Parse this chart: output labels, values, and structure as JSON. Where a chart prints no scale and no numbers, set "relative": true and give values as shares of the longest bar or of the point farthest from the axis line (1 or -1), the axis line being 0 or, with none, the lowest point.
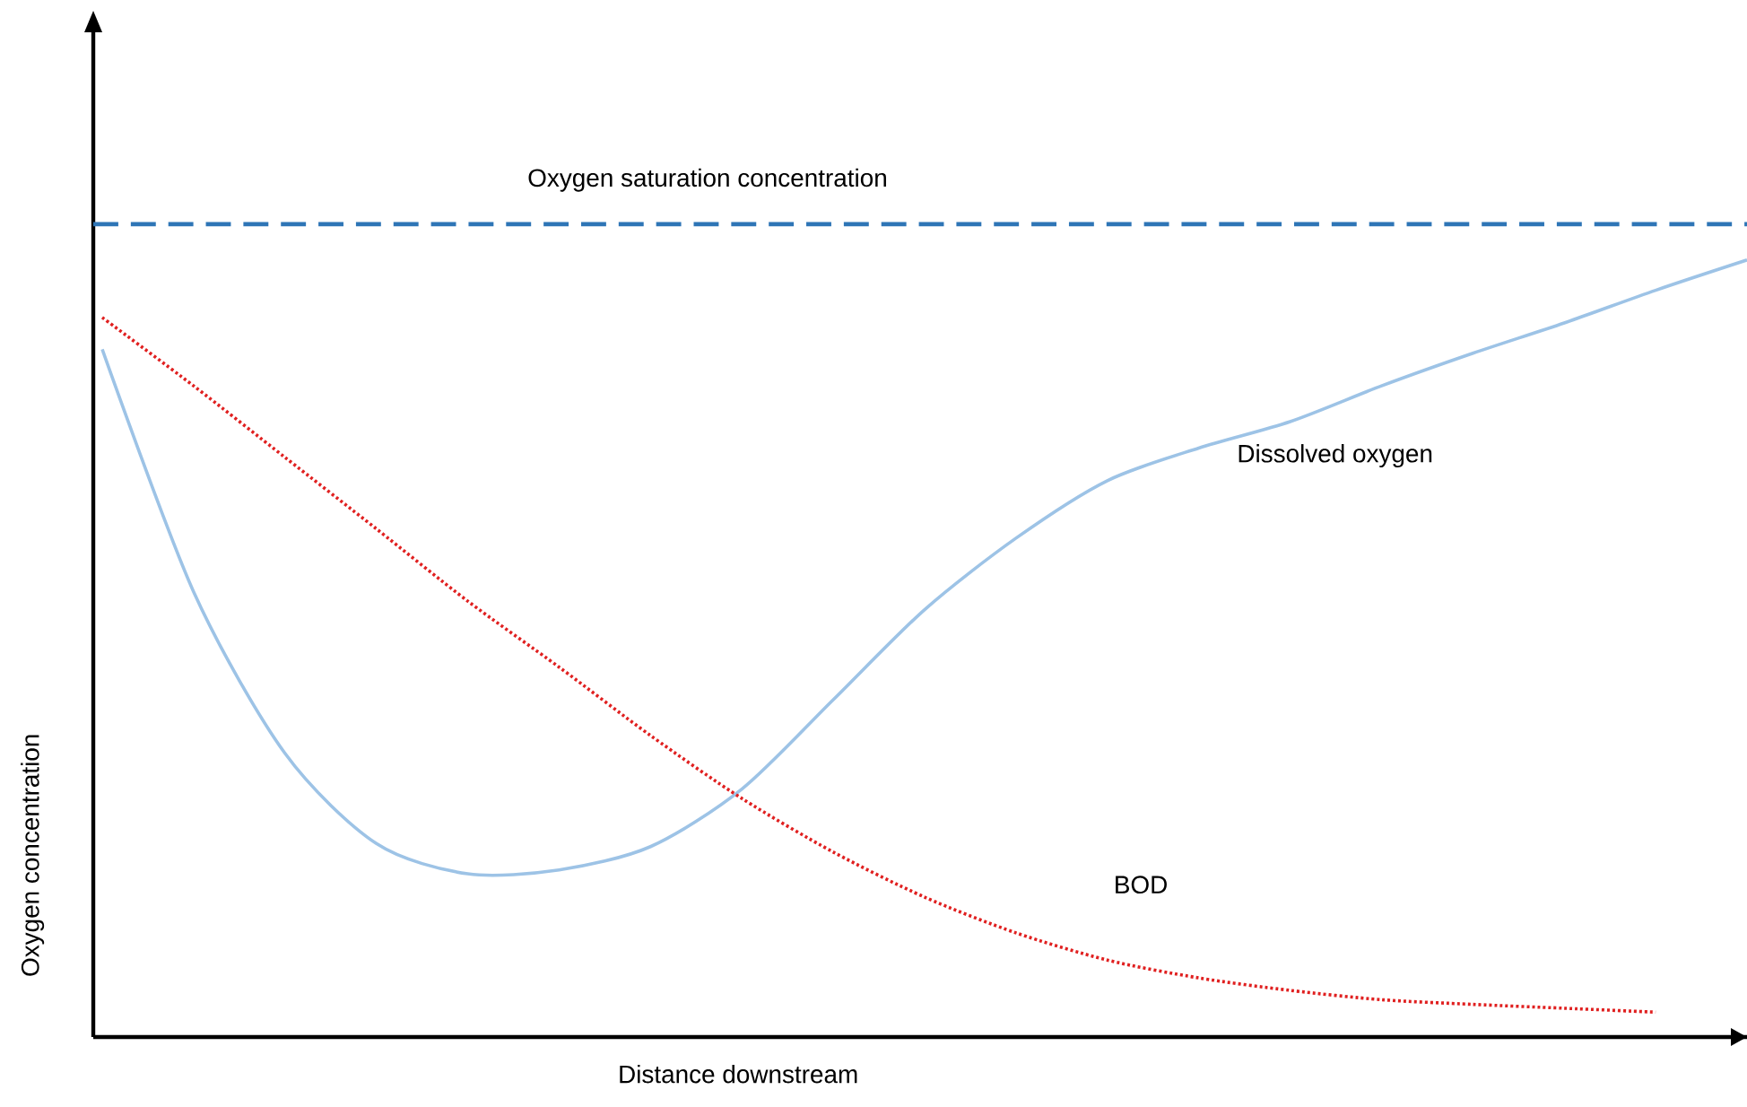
{
  "chart_data": {
    "type": "line",
    "relative": true,
    "xlabel": "Distance downstream",
    "ylabel": "Oxygen concentration",
    "marker": "none",
    "categories": [
      null,
      null,
      null,
      null,
      null,
      null,
      null,
      null,
      null,
      null,
      null,
      null,
      null,
      null,
      null,
      null,
      null,
      null,
      null
    ],
    "series": [
      {
        "name": "Dissolved oxygen",
        "color": "#9dc3e6",
        "line_style": "solid",
        "values": [
          0.885,
          0.573,
          0.365,
          0.249,
          0.21,
          0.215,
          0.245,
          0.319,
          0.434,
          0.55,
          0.642,
          0.716,
          0.758,
          0.792,
          0.838,
          0.88,
          0.919,
          0.961,
          1
        ]
      },
      {
        "name": "BOD",
        "color": "#e02020",
        "line_style": "dotted",
        "values": [
          0.926,
          0.838,
          0.746,
          0.654,
          0.561,
          0.476,
          0.388,
          0.307,
          0.238,
          0.18,
          0.134,
          0.099,
          0.076,
          0.06,
          0.048,
          0.042,
          0.037,
          0.032,
          null
        ]
      }
    ],
    "ref_lines": [
      {
        "axis": "y",
        "value": 1.046,
        "label": "Oxygen saturation concentration",
        "color": "#2e75b6",
        "line_style": "dashed"
      }
    ]
  }
}
